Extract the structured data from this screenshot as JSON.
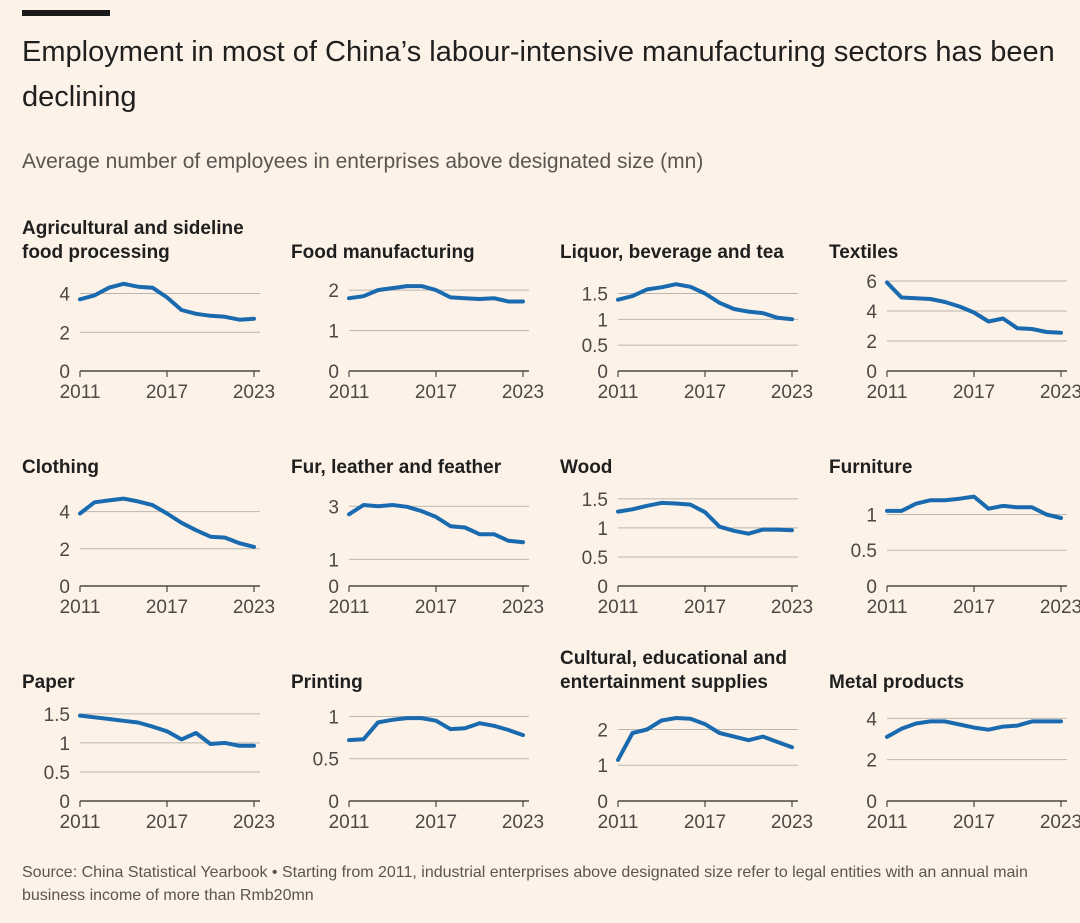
{
  "title": "Employment in most of China’s labour-intensive manufacturing sectors has been declining",
  "subtitle": "Average number of employees in enterprises above designated size (mn)",
  "source": "Source: China Statistical Yearbook • Starting from 2011, industrial enterprises above designated size refer to legal entities with an annual main business income of more than Rmb20mn",
  "colors": {
    "line": "#1a6aaf",
    "area": "#c5ccd6",
    "grid": "#bcb6b0",
    "axis": "#4d4845"
  },
  "chart_data": [
    {
      "type": "line",
      "title": "Agricultural and sideline food processing",
      "x": [
        2011,
        2012,
        2013,
        2014,
        2015,
        2016,
        2017,
        2018,
        2019,
        2020,
        2021,
        2022,
        2023
      ],
      "xticks": [
        "2011",
        "2017",
        "2023"
      ],
      "yticks": [
        "0",
        "2",
        "4"
      ],
      "ytick_values": [
        0,
        2,
        4
      ],
      "ylim": [
        0,
        4.8
      ],
      "values": [
        3.7,
        3.9,
        4.3,
        4.5,
        4.35,
        4.3,
        3.8,
        3.15,
        2.95,
        2.85,
        2.8,
        2.65,
        2.7
      ]
    },
    {
      "type": "line",
      "title": "Food manufacturing",
      "x": [
        2011,
        2012,
        2013,
        2014,
        2015,
        2016,
        2017,
        2018,
        2019,
        2020,
        2021,
        2022,
        2023
      ],
      "xticks": [
        "2011",
        "2017",
        "2023"
      ],
      "yticks": [
        "0",
        "1",
        "2"
      ],
      "ytick_values": [
        0,
        1,
        2
      ],
      "ylim": [
        0,
        2.3
      ],
      "values": [
        1.8,
        1.85,
        2.0,
        2.05,
        2.1,
        2.1,
        2.0,
        1.82,
        1.8,
        1.78,
        1.8,
        1.72,
        1.72
      ]
    },
    {
      "type": "line",
      "title": "Liquor, beverage and tea",
      "x": [
        2011,
        2012,
        2013,
        2014,
        2015,
        2016,
        2017,
        2018,
        2019,
        2020,
        2021,
        2022,
        2023
      ],
      "xticks": [
        "2011",
        "2017",
        "2023"
      ],
      "yticks": [
        "0",
        "0.5",
        "1",
        "1.5"
      ],
      "ytick_values": [
        0,
        0.5,
        1,
        1.5
      ],
      "ylim": [
        0,
        1.8
      ],
      "values": [
        1.38,
        1.45,
        1.58,
        1.62,
        1.68,
        1.63,
        1.5,
        1.32,
        1.2,
        1.15,
        1.12,
        1.03,
        1.0
      ]
    },
    {
      "type": "line",
      "title": "Textiles",
      "x": [
        2011,
        2012,
        2013,
        2014,
        2015,
        2016,
        2017,
        2018,
        2019,
        2020,
        2021,
        2022,
        2023
      ],
      "xticks": [
        "2011",
        "2017",
        "2023"
      ],
      "yticks": [
        "0",
        "2",
        "4",
        "6"
      ],
      "ytick_values": [
        0,
        2,
        4,
        6
      ],
      "ylim": [
        0,
        6.2
      ],
      "values": [
        5.9,
        4.9,
        4.85,
        4.8,
        4.6,
        4.3,
        3.9,
        3.3,
        3.5,
        2.85,
        2.8,
        2.6,
        2.55
      ]
    },
    {
      "type": "line",
      "title": "Clothing",
      "x": [
        2011,
        2012,
        2013,
        2014,
        2015,
        2016,
        2017,
        2018,
        2019,
        2020,
        2021,
        2022,
        2023
      ],
      "xticks": [
        "2011",
        "2017",
        "2023"
      ],
      "yticks": [
        "0",
        "2",
        "4"
      ],
      "ytick_values": [
        0,
        2,
        4
      ],
      "ylim": [
        0,
        5
      ],
      "values": [
        3.9,
        4.5,
        4.6,
        4.7,
        4.55,
        4.35,
        3.9,
        3.4,
        3.0,
        2.65,
        2.6,
        2.3,
        2.1
      ]
    },
    {
      "type": "line",
      "title": "Fur, leather and feather",
      "x": [
        2011,
        2012,
        2013,
        2014,
        2015,
        2016,
        2017,
        2018,
        2019,
        2020,
        2021,
        2022,
        2023
      ],
      "xticks": [
        "2011",
        "2017",
        "2023"
      ],
      "yticks": [
        "0",
        "1",
        "3"
      ],
      "ytick_values": [
        0,
        1,
        3
      ],
      "ylim": [
        0,
        3.5
      ],
      "values": [
        2.7,
        3.05,
        3.0,
        3.05,
        2.98,
        2.82,
        2.6,
        2.25,
        2.2,
        1.95,
        1.95,
        1.7,
        1.65
      ]
    },
    {
      "type": "line",
      "title": "Wood",
      "x": [
        2011,
        2012,
        2013,
        2014,
        2015,
        2016,
        2017,
        2018,
        2019,
        2020,
        2021,
        2022,
        2023
      ],
      "xticks": [
        "2011",
        "2017",
        "2023"
      ],
      "yticks": [
        "0",
        "0.5",
        "1",
        "1.5"
      ],
      "ytick_values": [
        0,
        0.5,
        1,
        1.5
      ],
      "ylim": [
        0,
        1.6
      ],
      "values": [
        1.28,
        1.32,
        1.38,
        1.43,
        1.42,
        1.4,
        1.27,
        1.02,
        0.95,
        0.9,
        0.97,
        0.97,
        0.96
      ]
    },
    {
      "type": "line",
      "title": "Furniture",
      "x": [
        2011,
        2012,
        2013,
        2014,
        2015,
        2016,
        2017,
        2018,
        2019,
        2020,
        2021,
        2022,
        2023
      ],
      "xticks": [
        "2011",
        "2017",
        "2023"
      ],
      "yticks": [
        "0",
        "0.5",
        "1"
      ],
      "ytick_values": [
        0,
        0.5,
        1
      ],
      "ylim": [
        0,
        1.3
      ],
      "values": [
        1.05,
        1.05,
        1.15,
        1.2,
        1.2,
        1.22,
        1.25,
        1.08,
        1.12,
        1.1,
        1.1,
        1.0,
        0.95
      ]
    },
    {
      "type": "line",
      "title": "Paper",
      "x": [
        2011,
        2012,
        2013,
        2014,
        2015,
        2016,
        2017,
        2018,
        2019,
        2020,
        2021,
        2022,
        2023
      ],
      "xticks": [
        "2011",
        "2017",
        "2023"
      ],
      "yticks": [
        "0",
        "0.5",
        "1",
        "1.5"
      ],
      "ytick_values": [
        0,
        0.5,
        1,
        1.5
      ],
      "ylim": [
        0,
        1.6
      ],
      "values": [
        1.47,
        1.44,
        1.41,
        1.38,
        1.35,
        1.28,
        1.2,
        1.06,
        1.17,
        0.98,
        1.0,
        0.95,
        0.95
      ]
    },
    {
      "type": "line",
      "title": "Printing",
      "x": [
        2011,
        2012,
        2013,
        2014,
        2015,
        2016,
        2017,
        2018,
        2019,
        2020,
        2021,
        2022,
        2023
      ],
      "xticks": [
        "2011",
        "2017",
        "2023"
      ],
      "yticks": [
        "0",
        "0.5",
        "1"
      ],
      "ytick_values": [
        0,
        0.5,
        1
      ],
      "ylim": [
        0,
        1.1
      ],
      "values": [
        0.72,
        0.73,
        0.93,
        0.96,
        0.98,
        0.98,
        0.95,
        0.85,
        0.86,
        0.92,
        0.89,
        0.84,
        0.78
      ]
    },
    {
      "type": "line",
      "title": "Cultural, educational and entertainment supplies",
      "x": [
        2011,
        2012,
        2013,
        2014,
        2015,
        2016,
        2017,
        2018,
        2019,
        2020,
        2021,
        2022,
        2023
      ],
      "xticks": [
        "2011",
        "2017",
        "2023"
      ],
      "yticks": [
        "0",
        "1",
        "2"
      ],
      "ytick_values": [
        0,
        1,
        2
      ],
      "ylim": [
        0,
        2.6
      ],
      "values": [
        1.15,
        1.9,
        2.0,
        2.25,
        2.32,
        2.3,
        2.15,
        1.9,
        1.8,
        1.7,
        1.8,
        1.65,
        1.5
      ]
    },
    {
      "type": "line",
      "title": "Metal products",
      "x": [
        2011,
        2012,
        2013,
        2014,
        2015,
        2016,
        2017,
        2018,
        2019,
        2020,
        2021,
        2022,
        2023
      ],
      "xticks": [
        "2011",
        "2017",
        "2023"
      ],
      "yticks": [
        "0",
        "2",
        "4"
      ],
      "ytick_values": [
        0,
        2,
        4
      ],
      "ylim": [
        0,
        4.5
      ],
      "values": [
        3.1,
        3.5,
        3.75,
        3.85,
        3.85,
        3.7,
        3.55,
        3.45,
        3.6,
        3.65,
        3.85,
        3.85,
        3.85
      ]
    }
  ]
}
